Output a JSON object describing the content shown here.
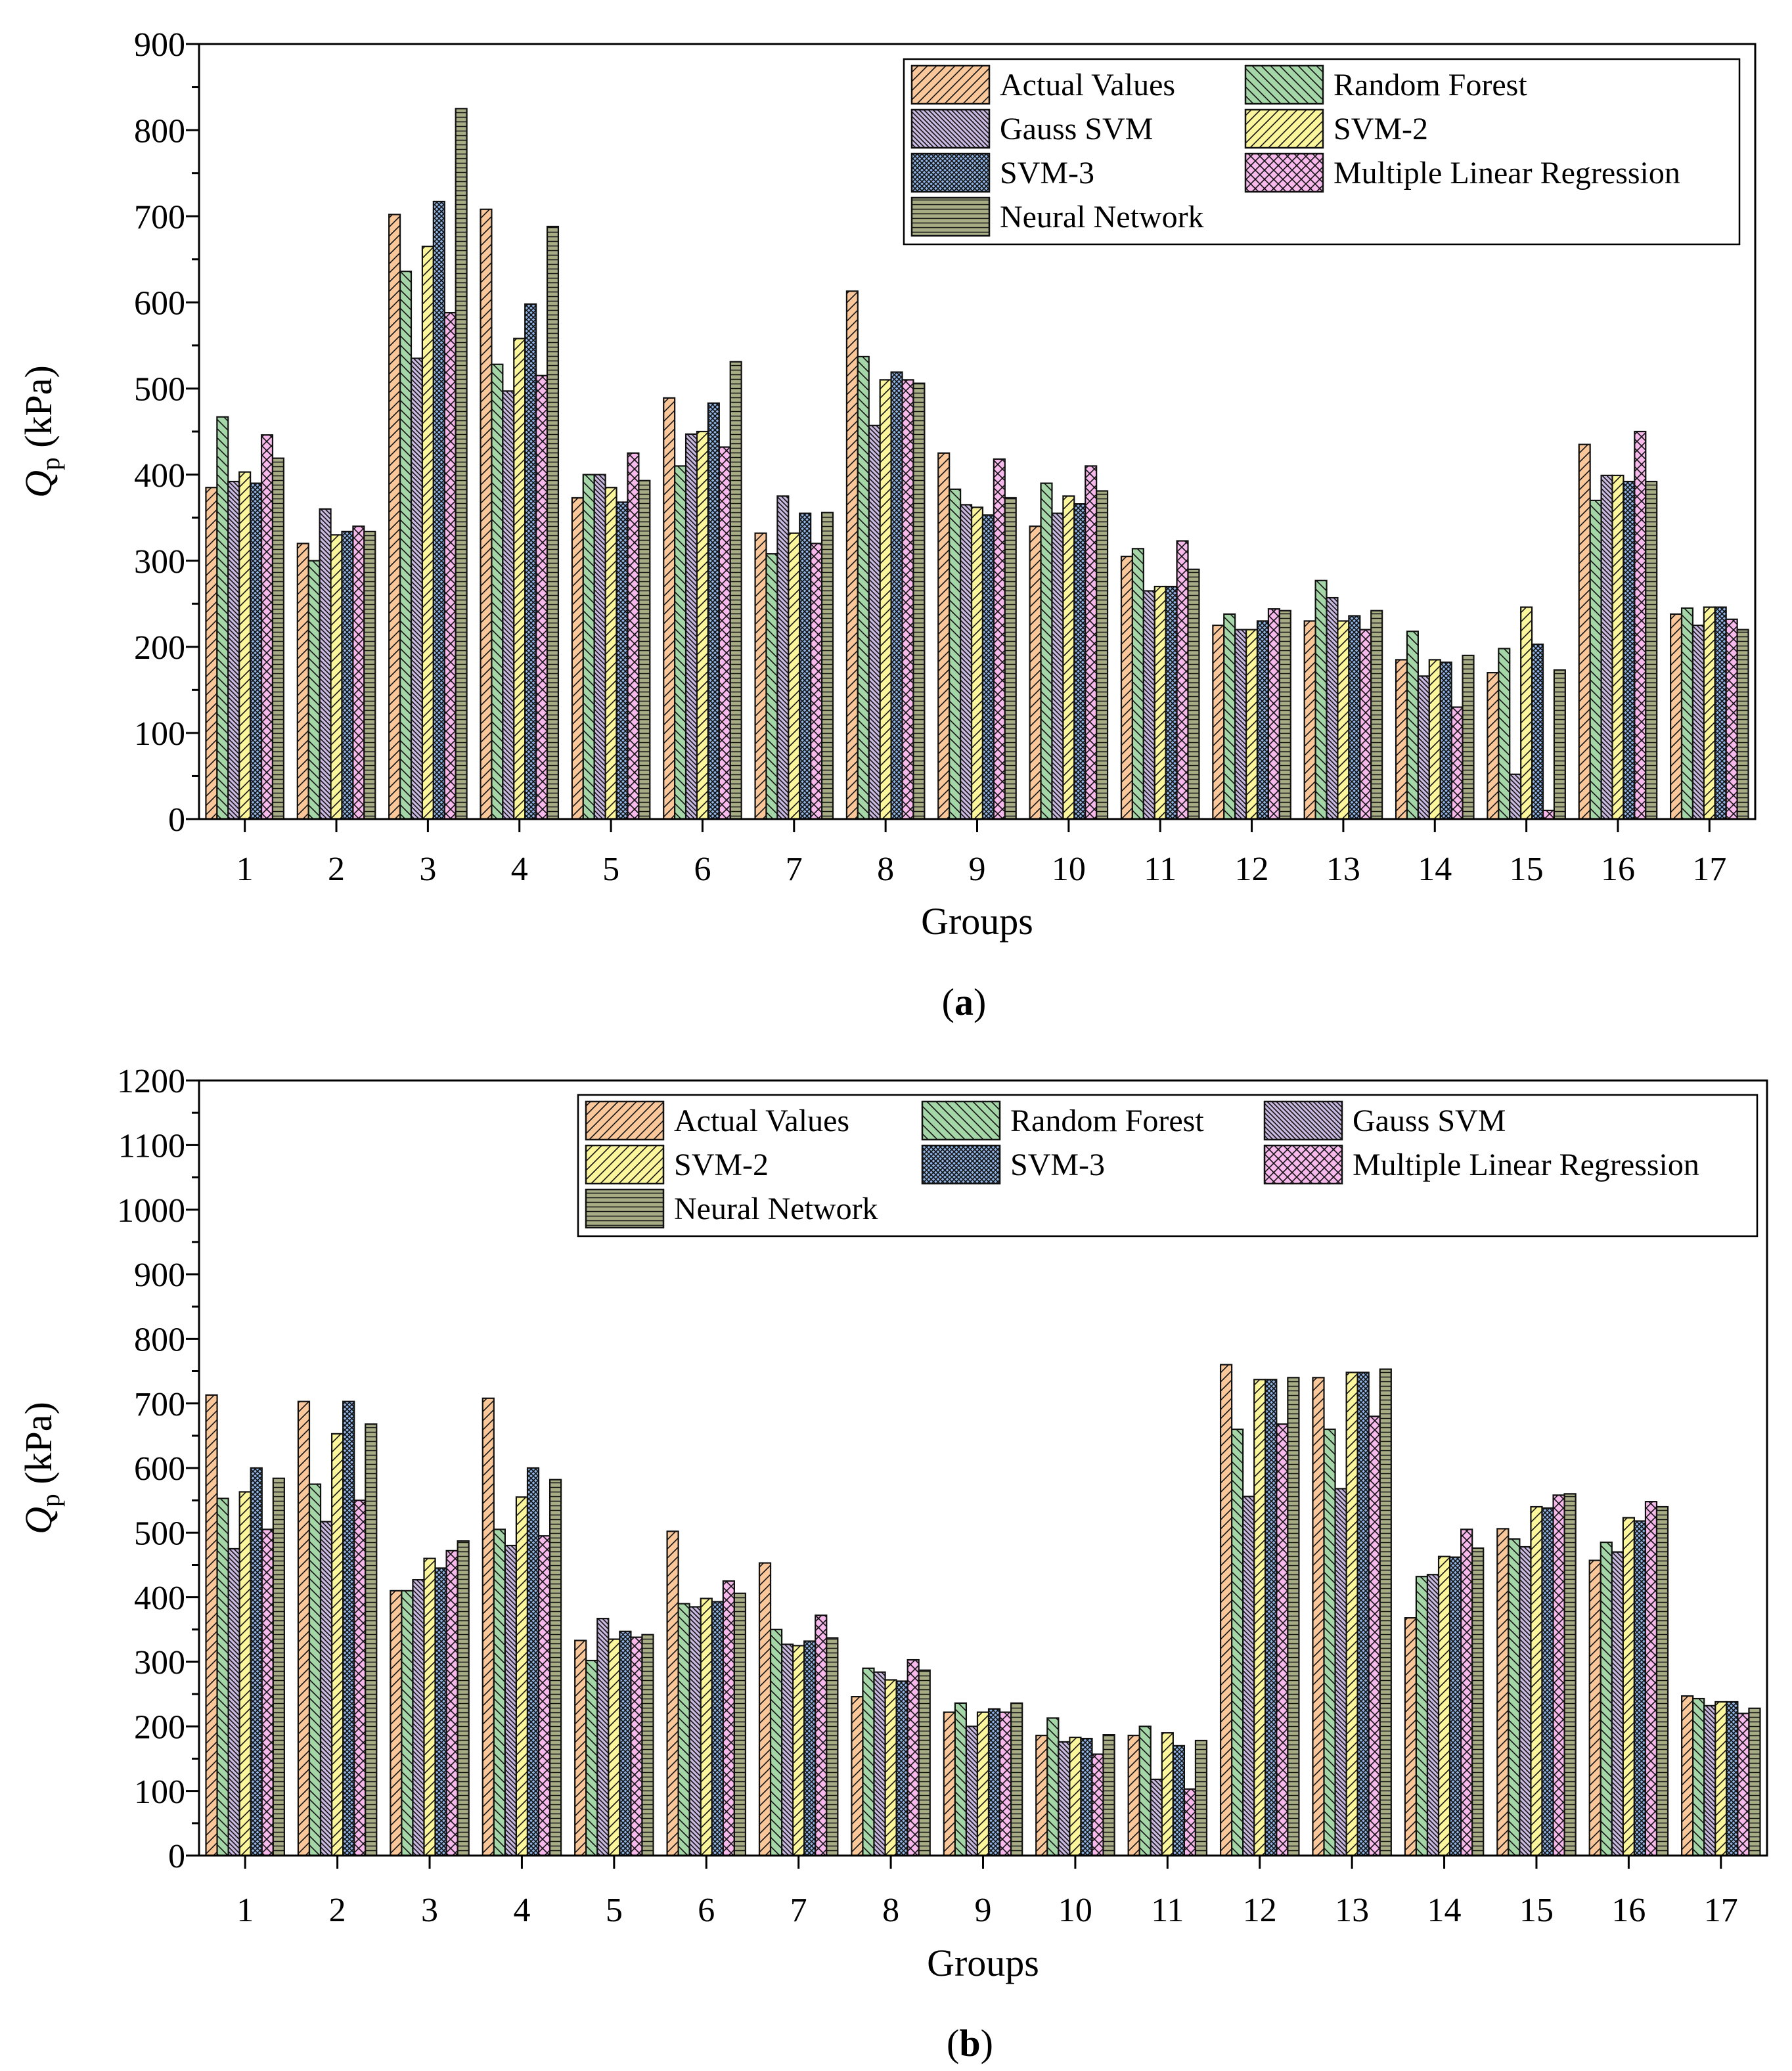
{
  "figure": {
    "background": "#ffffff"
  },
  "series_styles": [
    {
      "name": "Actual Values",
      "color": "#f9c79a",
      "pattern": "diag-right"
    },
    {
      "name": "Random Forest",
      "color": "#a5d6a7",
      "pattern": "diag-left"
    },
    {
      "name": "Gauss SVM",
      "color": "#c9b8e0",
      "pattern": "diag-left-dense"
    },
    {
      "name": "SVM-2",
      "color": "#fbf59c",
      "pattern": "diag-right"
    },
    {
      "name": "SVM-3",
      "color": "#8fb4e6",
      "pattern": "crosshatch"
    },
    {
      "name": "Multiple Linear Regression",
      "color": "#f7b8ec",
      "pattern": "crosshatch-wide"
    },
    {
      "name": "Neural Network",
      "color": "#a8ad85",
      "pattern": "horizontal"
    }
  ],
  "chart_data": [
    {
      "type": "bar",
      "panel_label": "a",
      "xlabel": "Groups",
      "ylabel_main": "Q",
      "ylabel_sub": "p",
      "ylabel_unit": " (kPa)",
      "ylim": [
        0,
        900
      ],
      "yticks": [
        0,
        100,
        200,
        300,
        400,
        500,
        600,
        700,
        800,
        900
      ],
      "categories": [
        "1",
        "2",
        "3",
        "4",
        "5",
        "6",
        "7",
        "8",
        "9",
        "10",
        "11",
        "12",
        "13",
        "14",
        "15",
        "16",
        "17"
      ],
      "series": [
        {
          "name": "Actual Values",
          "values": [
            385,
            320,
            702,
            708,
            373,
            489,
            332,
            613,
            425,
            340,
            305,
            225,
            230,
            185,
            170,
            435,
            238
          ]
        },
        {
          "name": "Random Forest",
          "values": [
            467,
            300,
            636,
            528,
            400,
            410,
            308,
            537,
            383,
            390,
            314,
            238,
            277,
            218,
            198,
            370,
            245
          ]
        },
        {
          "name": "Gauss SVM",
          "values": [
            392,
            360,
            535,
            497,
            400,
            447,
            375,
            457,
            365,
            355,
            265,
            220,
            257,
            166,
            52,
            399,
            225
          ]
        },
        {
          "name": "SVM-2",
          "values": [
            403,
            330,
            665,
            558,
            385,
            450,
            332,
            510,
            362,
            375,
            270,
            220,
            230,
            185,
            246,
            399,
            246
          ]
        },
        {
          "name": "SVM-3",
          "values": [
            390,
            334,
            717,
            598,
            368,
            483,
            355,
            519,
            353,
            366,
            270,
            230,
            236,
            182,
            203,
            392,
            246
          ]
        },
        {
          "name": "Multiple Linear Regression",
          "values": [
            446,
            340,
            588,
            515,
            425,
            432,
            320,
            510,
            418,
            410,
            323,
            244,
            220,
            130,
            10,
            450,
            232
          ]
        },
        {
          "name": "Neural Network",
          "values": [
            419,
            334,
            825,
            688,
            393,
            531,
            356,
            506,
            373,
            381,
            290,
            242,
            242,
            190,
            173,
            392,
            220
          ]
        }
      ],
      "legend": {
        "placement": "top-right",
        "columns": 2,
        "order": [
          "Actual Values",
          "Random Forest",
          "Gauss SVM",
          "SVM-2",
          "SVM-3",
          "Multiple Linear Regression",
          "Neural Network"
        ]
      }
    },
    {
      "type": "bar",
      "panel_label": "b",
      "xlabel": "Groups",
      "ylabel_main": "Q",
      "ylabel_sub": "p",
      "ylabel_unit": " (kPa)",
      "ylim": [
        0,
        1200
      ],
      "yticks": [
        0,
        100,
        200,
        300,
        400,
        500,
        600,
        700,
        800,
        900,
        1000,
        1100,
        1200
      ],
      "categories": [
        "1",
        "2",
        "3",
        "4",
        "5",
        "6",
        "7",
        "8",
        "9",
        "10",
        "11",
        "12",
        "13",
        "14",
        "15",
        "16",
        "17"
      ],
      "series": [
        {
          "name": "Actual Values",
          "values": [
            713,
            703,
            410,
            708,
            333,
            502,
            453,
            246,
            222,
            186,
            186,
            760,
            740,
            368,
            506,
            457,
            247
          ]
        },
        {
          "name": "Random Forest",
          "values": [
            553,
            575,
            410,
            505,
            302,
            390,
            350,
            290,
            236,
            213,
            200,
            660,
            660,
            432,
            490,
            485,
            243
          ]
        },
        {
          "name": "Gauss SVM",
          "values": [
            475,
            517,
            427,
            480,
            367,
            385,
            327,
            284,
            200,
            176,
            118,
            556,
            568,
            435,
            478,
            470,
            232
          ]
        },
        {
          "name": "SVM-2",
          "values": [
            563,
            653,
            460,
            555,
            335,
            398,
            325,
            272,
            222,
            183,
            190,
            737,
            748,
            463,
            540,
            523,
            238
          ]
        },
        {
          "name": "SVM-3",
          "values": [
            600,
            703,
            445,
            600,
            347,
            393,
            332,
            270,
            227,
            181,
            170,
            737,
            748,
            462,
            538,
            518,
            238
          ]
        },
        {
          "name": "Multiple Linear Regression",
          "values": [
            505,
            550,
            472,
            495,
            338,
            425,
            372,
            303,
            222,
            157,
            103,
            668,
            680,
            505,
            558,
            548,
            220
          ]
        },
        {
          "name": "Neural Network",
          "values": [
            584,
            668,
            487,
            582,
            342,
            406,
            337,
            287,
            236,
            187,
            178,
            740,
            753,
            476,
            560,
            540,
            228
          ]
        }
      ],
      "legend": {
        "placement": "top-right",
        "columns": 3,
        "order": [
          "Actual Values",
          "Random Forest",
          "Gauss SVM",
          "SVM-2",
          "SVM-3",
          "Multiple Linear Regression",
          "Neural Network"
        ]
      }
    }
  ]
}
